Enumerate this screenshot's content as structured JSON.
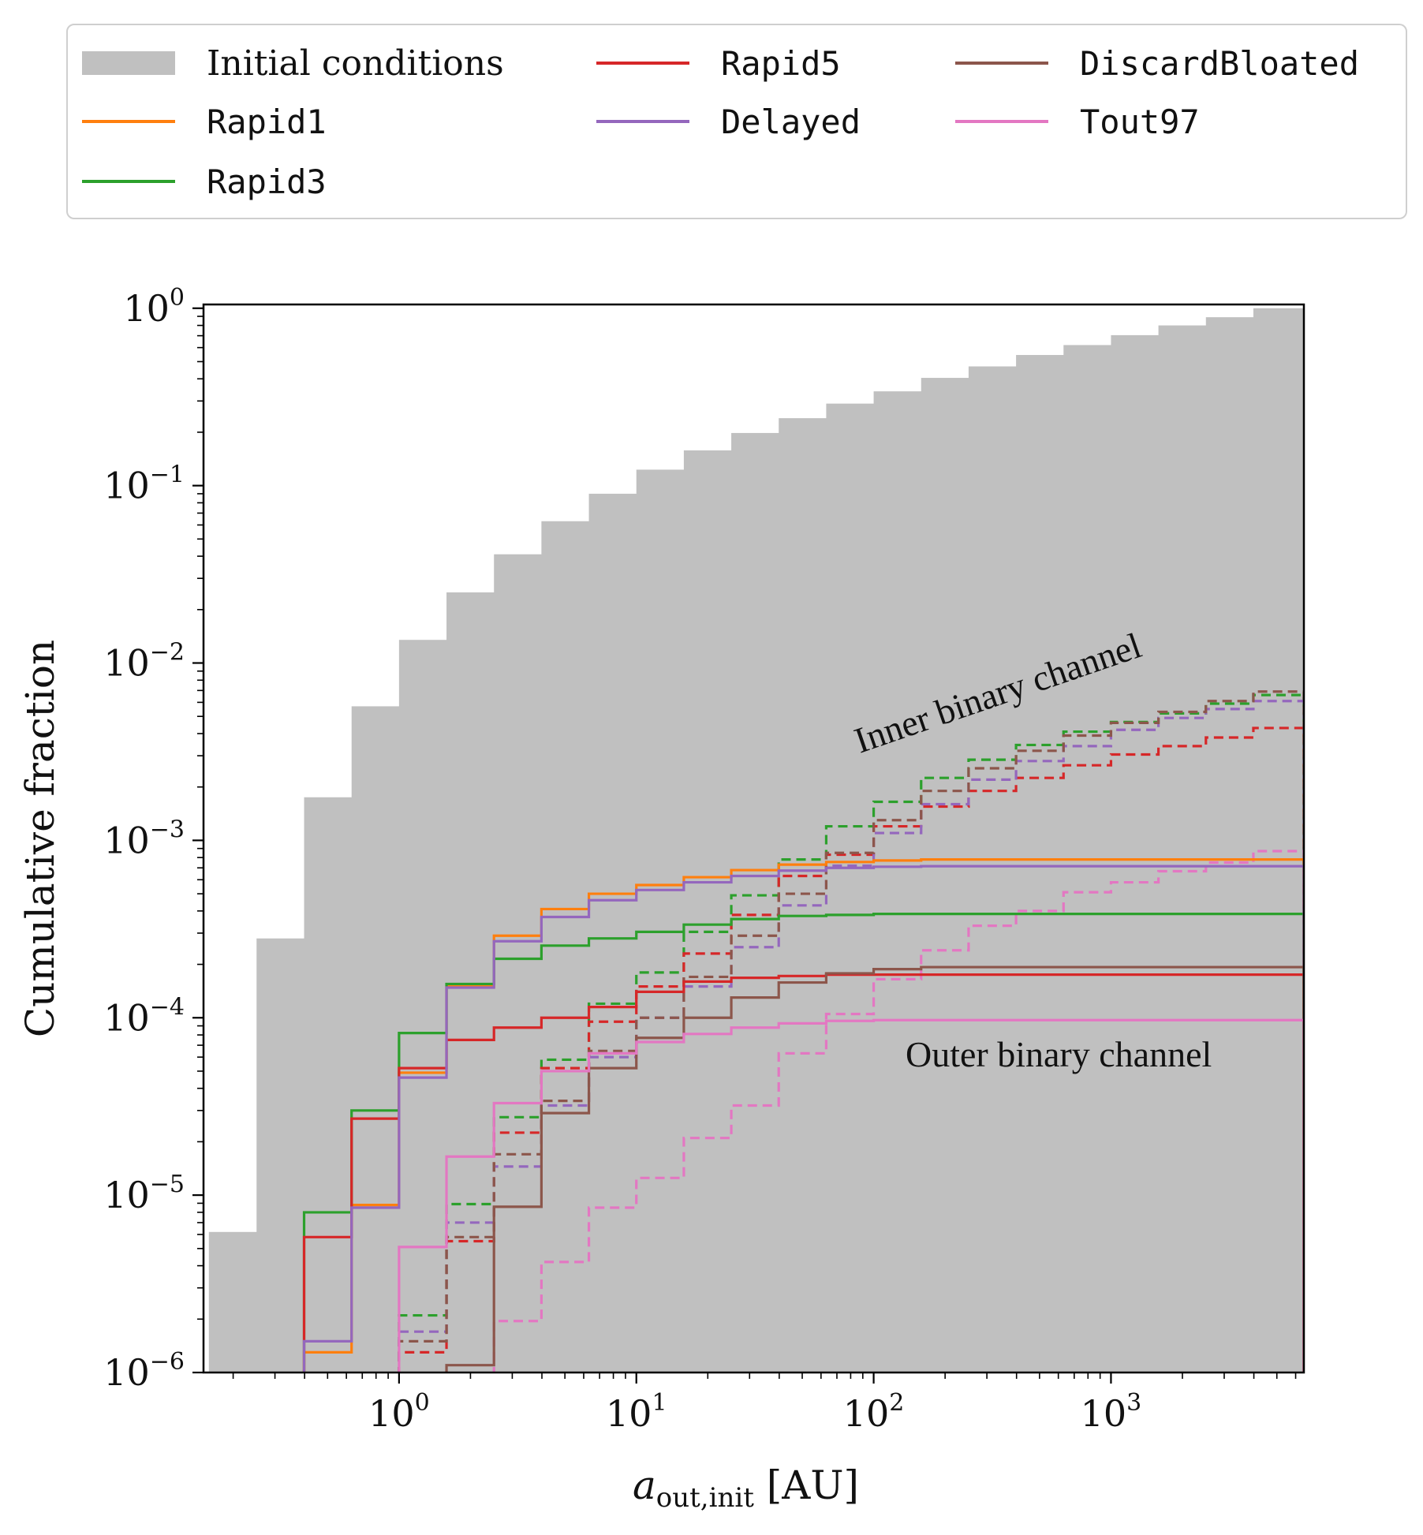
{
  "chart_data": {
    "type": "step-histogram",
    "xlabel": "a_out,init [AU]",
    "ylabel": "Cumulative fraction",
    "xscale": "log",
    "yscale": "log",
    "xlim": [
      0.15,
      6500
    ],
    "ylim": [
      1e-06,
      1.05
    ],
    "x_tick_labels": [
      "10^0",
      "10^1",
      "10^2",
      "10^3"
    ],
    "y_tick_labels": [
      "10^-6",
      "10^-5",
      "10^-4",
      "10^-3",
      "10^-2",
      "10^-1",
      "10^0"
    ],
    "bin_edges": [
      0.158,
      0.251,
      0.398,
      0.631,
      1.0,
      1.585,
      2.512,
      3.981,
      6.31,
      10.0,
      15.85,
      25.12,
      39.81,
      63.1,
      100.0,
      158.5,
      251.2,
      398.1,
      631.0,
      1000.0,
      1585.0,
      2512.0,
      3981.0,
      6310.0
    ],
    "initial_conditions": {
      "label": "Initial conditions",
      "color": "#c0c0c0",
      "values": [
        6.2e-06,
        0.00028,
        0.00175,
        0.0057,
        0.0135,
        0.025,
        0.041,
        0.063,
        0.09,
        0.123,
        0.158,
        0.198,
        0.24,
        0.29,
        0.34,
        0.405,
        0.47,
        0.545,
        0.62,
        0.705,
        0.8,
        0.89,
        1.0
      ]
    },
    "series": [
      {
        "name": "Rapid1",
        "color": "#ff7f0e",
        "channel": "outer",
        "style": "solid",
        "values": [
          null,
          null,
          1.3e-06,
          8.8e-06,
          4.9e-05,
          0.00015,
          0.00029,
          0.00041,
          0.0005,
          0.00056,
          0.00062,
          0.00068,
          0.00073,
          0.000755,
          0.00077,
          0.00078,
          0.00078,
          0.00078,
          0.00078,
          0.00078,
          0.00078,
          0.00078,
          0.00078
        ]
      },
      {
        "name": "Rapid3",
        "color": "#2ca02c",
        "channel": "outer",
        "style": "solid",
        "values": [
          null,
          null,
          8e-06,
          3e-05,
          8.2e-05,
          0.000155,
          0.000215,
          0.000255,
          0.00028,
          0.000305,
          0.000335,
          0.00036,
          0.000375,
          0.00038,
          0.000385,
          0.000385,
          0.000385,
          0.000385,
          0.000385,
          0.000385,
          0.000385,
          0.000385,
          0.000385
        ]
      },
      {
        "name": "Rapid5",
        "color": "#d62728",
        "channel": "outer",
        "style": "solid",
        "values": [
          null,
          null,
          5.8e-06,
          2.7e-05,
          5.2e-05,
          7.5e-05,
          8.8e-05,
          0.0001,
          0.000115,
          0.00014,
          0.00016,
          0.000168,
          0.000172,
          0.000175,
          0.000175,
          0.000175,
          0.000175,
          0.000175,
          0.000175,
          0.000175,
          0.000175,
          0.000175,
          0.000175
        ]
      },
      {
        "name": "Delayed",
        "color": "#9467bd",
        "channel": "outer",
        "style": "solid",
        "values": [
          null,
          null,
          1.5e-06,
          8.5e-06,
          4.6e-05,
          0.000148,
          0.00027,
          0.00037,
          0.00046,
          0.000525,
          0.00058,
          0.00063,
          0.000675,
          0.0007,
          0.00071,
          0.000715,
          0.000715,
          0.000715,
          0.000715,
          0.000715,
          0.000715,
          0.000715,
          0.000715
        ]
      },
      {
        "name": "DiscardBloated",
        "color": "#8c564b",
        "channel": "outer",
        "style": "solid",
        "values": [
          null,
          null,
          null,
          null,
          null,
          1.1e-06,
          8.6e-06,
          2.9e-05,
          5.2e-05,
          7.7e-05,
          0.0001,
          0.00013,
          0.000158,
          0.000178,
          0.000188,
          0.000193,
          0.000193,
          0.000193,
          0.000193,
          0.000193,
          0.000193,
          0.000193,
          0.000193
        ]
      },
      {
        "name": "Tout97",
        "color": "#e377c2",
        "channel": "outer",
        "style": "solid",
        "values": [
          null,
          null,
          null,
          null,
          5.1e-06,
          1.65e-05,
          3.3e-05,
          5e-05,
          6.3e-05,
          7.3e-05,
          8.1e-05,
          8.8e-05,
          9.3e-05,
          9.6e-05,
          9.7e-05,
          9.7e-05,
          9.7e-05,
          9.7e-05,
          9.7e-05,
          9.7e-05,
          9.7e-05,
          9.7e-05,
          9.7e-05
        ]
      },
      {
        "name": "Rapid3",
        "color": "#2ca02c",
        "channel": "inner",
        "style": "dashed",
        "values": [
          null,
          null,
          null,
          null,
          2.1e-06,
          8.9e-06,
          2.75e-05,
          5.8e-05,
          0.00012,
          0.00018,
          0.000305,
          0.00049,
          0.00078,
          0.0012,
          0.00165,
          0.00225,
          0.00285,
          0.00345,
          0.0041,
          0.00465,
          0.0052,
          0.0059,
          0.0066
        ]
      },
      {
        "name": "Rapid5",
        "color": "#d62728",
        "channel": "inner",
        "style": "dashed",
        "values": [
          null,
          null,
          null,
          null,
          1.3e-06,
          5.5e-06,
          2.25e-05,
          5.2e-05,
          9.5e-05,
          0.00015,
          0.00023,
          0.00038,
          0.00063,
          0.00083,
          0.0012,
          0.00155,
          0.0019,
          0.00225,
          0.00265,
          0.00305,
          0.0034,
          0.0038,
          0.0043
        ]
      },
      {
        "name": "Delayed",
        "color": "#9467bd",
        "channel": "inner",
        "style": "dashed",
        "values": [
          null,
          null,
          null,
          null,
          1.7e-06,
          7e-06,
          1.45e-05,
          3.2e-05,
          6e-05,
          0.0001,
          0.00015,
          0.00025,
          0.00043,
          0.00072,
          0.0011,
          0.0016,
          0.0022,
          0.0028,
          0.0034,
          0.0042,
          0.0049,
          0.0055,
          0.0061
        ]
      },
      {
        "name": "DiscardBloated",
        "color": "#8c564b",
        "channel": "inner",
        "style": "dashed",
        "values": [
          null,
          null,
          null,
          null,
          1.5e-06,
          5.8e-06,
          1.7e-05,
          3.4e-05,
          6.5e-05,
          0.0001,
          0.00017,
          0.00029,
          0.0005,
          0.00085,
          0.0013,
          0.0019,
          0.00255,
          0.0032,
          0.0039,
          0.0046,
          0.0053,
          0.0061,
          0.0069
        ]
      },
      {
        "name": "Tout97",
        "color": "#e377c2",
        "channel": "inner",
        "style": "dashed",
        "values": [
          null,
          null,
          null,
          null,
          null,
          null,
          null,
          null,
          null,
          null,
          null,
          1.95e-06,
          4.2e-06,
          8.5e-06,
          1.25e-05,
          2.1e-05,
          3.2e-05,
          6.3e-05,
          0.000105,
          0.000165,
          0.00024,
          0.00033,
          0.0004,
          0.00051,
          0.00058,
          0.00067,
          0.00075,
          0.00087
        ],
        "bin_edges_override": [
          0.158,
          0.251,
          0.398,
          0.631,
          1.0,
          1.585,
          2.512,
          2.512,
          3.981,
          6.31,
          10.0,
          2.512,
          3.981,
          6.31,
          10.0,
          15.85,
          25.12,
          39.81,
          63.1,
          100.0,
          158.5,
          251.2,
          398.1,
          631.0,
          1000.0,
          1585.0,
          2512.0,
          3981.0,
          6310.0
        ]
      }
    ],
    "annotations": [
      "Inner binary channel",
      "Outer binary channel"
    ]
  },
  "legend": {
    "position": "top, outside plot",
    "items": [
      {
        "label": "Initial conditions",
        "kind": "patch",
        "color": "#c0c0c0"
      },
      {
        "label": "Rapid1",
        "kind": "line",
        "color": "#ff7f0e"
      },
      {
        "label": "Rapid3",
        "kind": "line",
        "color": "#2ca02c"
      },
      {
        "label": "Rapid5",
        "kind": "line",
        "color": "#d62728"
      },
      {
        "label": "Delayed",
        "kind": "line",
        "color": "#9467bd"
      },
      {
        "label": "DiscardBloated",
        "kind": "line",
        "color": "#8c564b"
      },
      {
        "label": "Tout97",
        "kind": "line",
        "color": "#e377c2"
      }
    ]
  }
}
